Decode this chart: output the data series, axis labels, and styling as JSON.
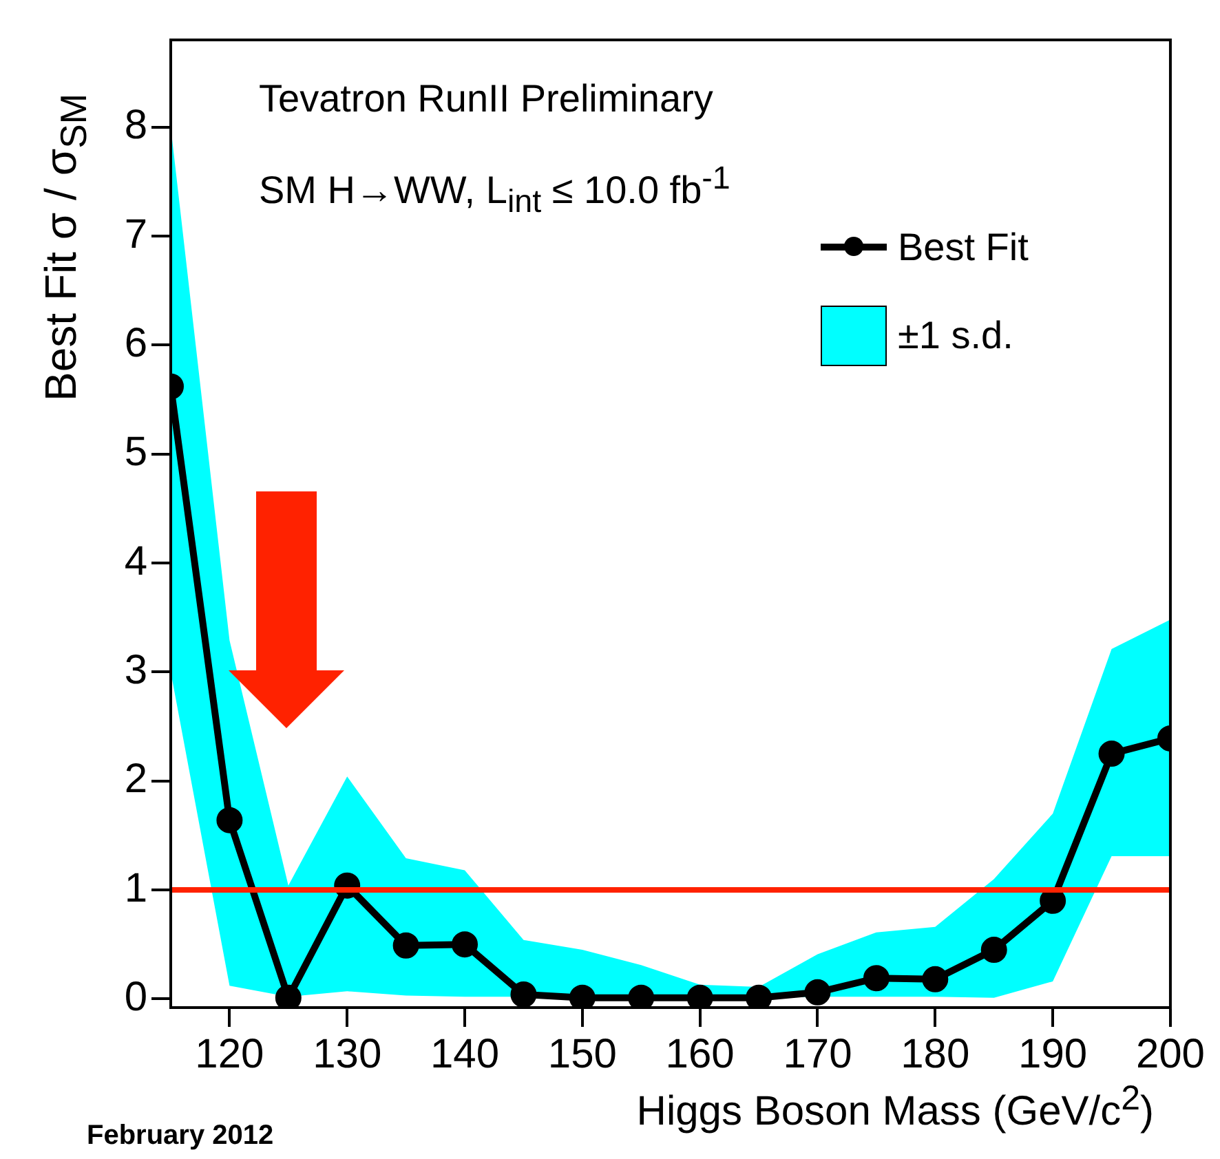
{
  "chart_data": {
    "type": "line",
    "xlabel": "Higgs Boson Mass (GeV/c$^{2}$)",
    "ylabel": "Best Fit σ / σ$_{SM}$",
    "annotations": [
      "Tevatron RunII Preliminary",
      "SM H→WW, L$_{int}$ ≤ 10.0 fb$^{-1}$",
      "February 2012"
    ],
    "x": [
      115,
      120,
      125,
      130,
      135,
      140,
      145,
      150,
      155,
      160,
      165,
      170,
      175,
      180,
      185,
      190,
      195,
      200
    ],
    "series": [
      {
        "name": "±1 s.d.",
        "type": "area",
        "color": "#00ffff",
        "values": [
          null,
          null,
          null,
          null,
          null,
          null,
          null,
          null,
          null,
          null,
          null,
          null,
          null,
          null,
          null,
          null,
          null,
          null
        ],
        "lower": [
          3.0,
          0.12,
          0.02,
          0.07,
          0.03,
          0.02,
          0.02,
          0.01,
          0.01,
          0.01,
          0.01,
          0.02,
          0.02,
          0.02,
          0.01,
          0.16,
          1.31,
          1.31
        ],
        "upper": [
          8.0,
          3.29,
          1.04,
          2.04,
          1.29,
          1.18,
          0.54,
          0.45,
          0.31,
          0.13,
          0.11,
          0.41,
          0.61,
          0.66,
          1.1,
          1.7,
          3.21,
          3.48
        ]
      },
      {
        "name": "Best Fit",
        "type": "line",
        "color": "#000000",
        "values": [
          5.62,
          1.64,
          0.01,
          1.04,
          0.49,
          0.5,
          0.04,
          0.01,
          0.01,
          0.01,
          0.01,
          0.06,
          0.19,
          0.18,
          0.45,
          0.9,
          2.25,
          2.39
        ]
      }
    ],
    "ref_lines": [
      {
        "axis": "y",
        "value": 1,
        "color": "#ff2200"
      }
    ],
    "xlim": [
      115,
      200
    ],
    "ylim": [
      -0.08,
      8.8
    ],
    "xticks": [
      120,
      130,
      140,
      150,
      160,
      170,
      180,
      190,
      200
    ],
    "yticks": [
      0,
      1,
      2,
      3,
      4,
      5,
      6,
      7,
      8
    ],
    "grid": false,
    "legend": "top right",
    "marker": "circle",
    "line_style": "solid"
  }
}
